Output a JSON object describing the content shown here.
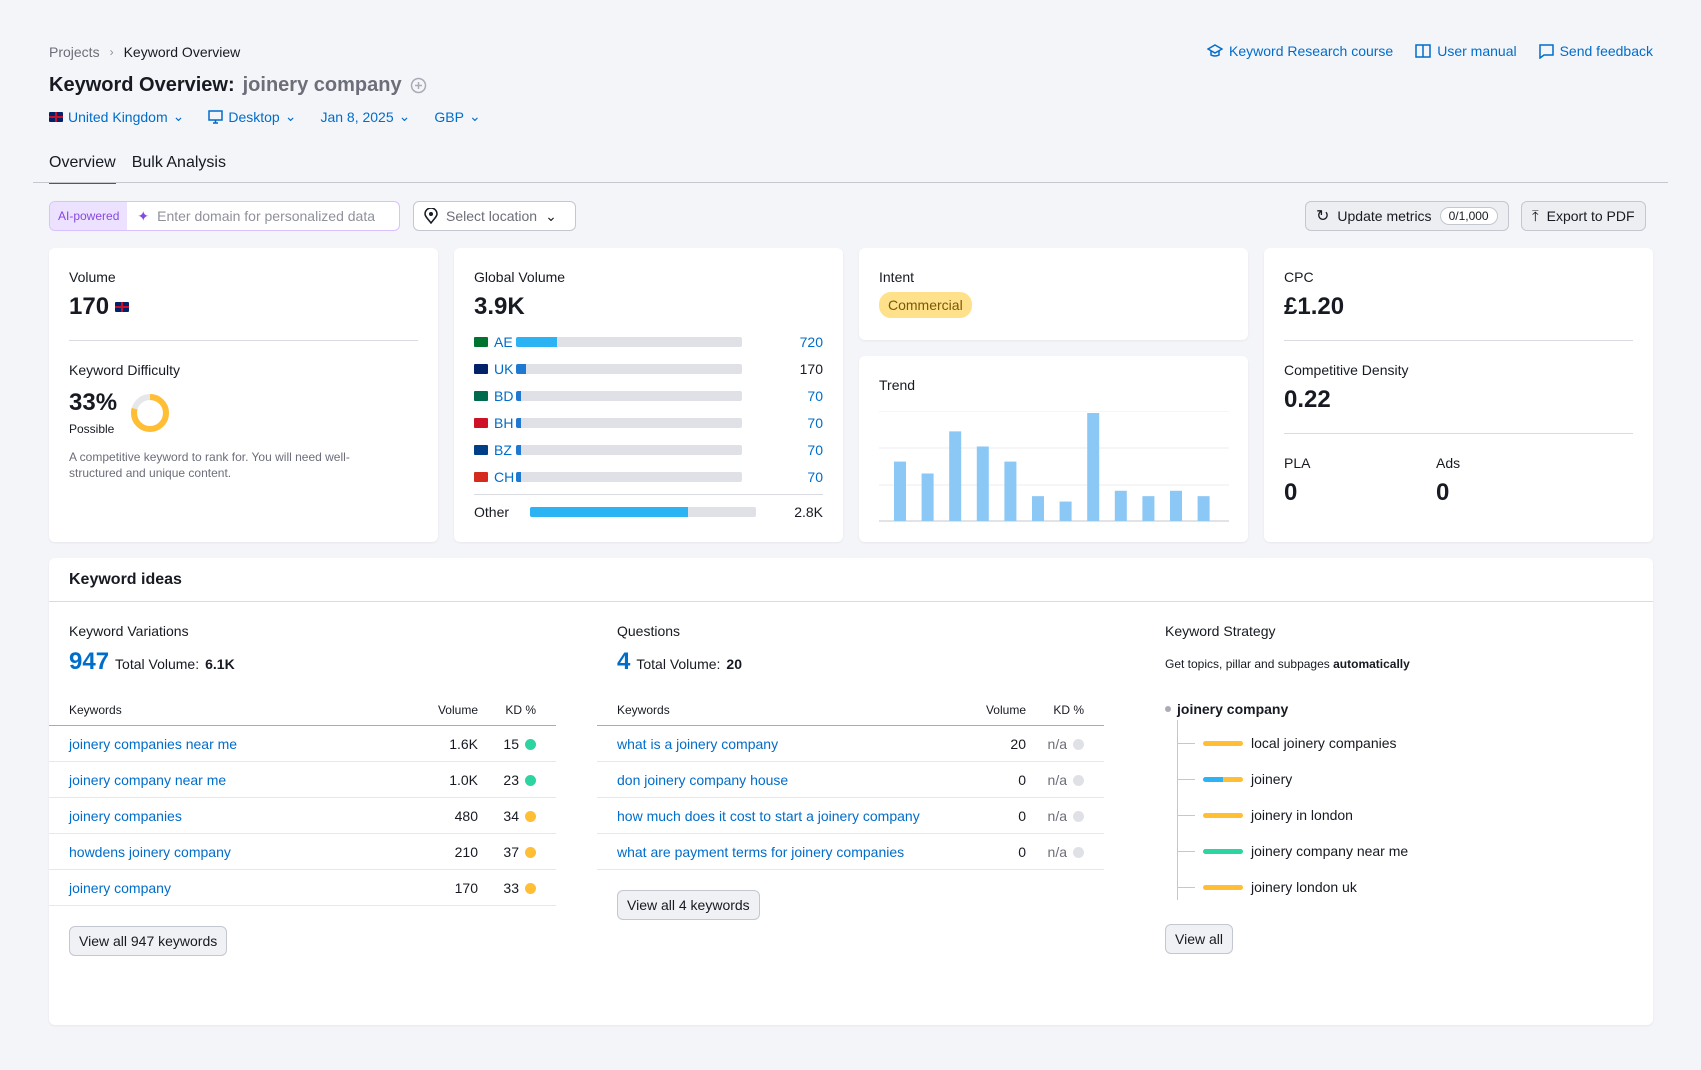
{
  "breadcrumb": {
    "root": "Projects",
    "current": "Keyword Overview"
  },
  "top_links": [
    {
      "label": "Keyword Research course",
      "icon": "graduation-cap-icon"
    },
    {
      "label": "User manual",
      "icon": "book-icon"
    },
    {
      "label": "Send feedback",
      "icon": "chat-icon"
    }
  ],
  "title": {
    "prefix": "Keyword Overview:",
    "keyword": "joinery company"
  },
  "filters": {
    "country": "United Kingdom",
    "device": "Desktop",
    "date": "Jan 8, 2025",
    "currency": "GBP"
  },
  "tabs": [
    "Overview",
    "Bulk Analysis"
  ],
  "ai": {
    "badge": "AI-powered",
    "placeholder": "Enter domain for personalized data"
  },
  "location_select": "Select location",
  "update_metrics": {
    "label": "Update metrics",
    "counter": "0/1,000"
  },
  "export": "Export to PDF",
  "volume": {
    "label": "Volume",
    "value": "170"
  },
  "kd": {
    "label": "Keyword Difficulty",
    "value": "33%",
    "level": "Possible",
    "percent": 33,
    "desc": "A competitive keyword to rank for. You will need well-structured and unique content."
  },
  "global_volume": {
    "label": "Global Volume",
    "value": "3.9K",
    "countries": [
      {
        "code": "AE",
        "value": "720",
        "fraction": 0.18
      },
      {
        "code": "UK",
        "value": "170",
        "fraction": 0.045
      },
      {
        "code": "BD",
        "value": "70",
        "fraction": 0.02
      },
      {
        "code": "BH",
        "value": "70",
        "fraction": 0.02
      },
      {
        "code": "BZ",
        "value": "70",
        "fraction": 0.02
      },
      {
        "code": "CH",
        "value": "70",
        "fraction": 0.02
      }
    ],
    "other": {
      "label": "Other",
      "value": "2.8K",
      "fraction": 0.7
    }
  },
  "intent": {
    "label": "Intent",
    "value": "Commercial"
  },
  "trend": {
    "label": "Trend",
    "values": [
      0.55,
      0.44,
      0.83,
      0.69,
      0.55,
      0.23,
      0.18,
      1.0,
      0.28,
      0.23,
      0.28,
      0.23
    ]
  },
  "cpc": {
    "label": "CPC",
    "value": "£1.20"
  },
  "competitive_density": {
    "label": "Competitive Density",
    "value": "0.22"
  },
  "pla": {
    "label": "PLA",
    "value": "0"
  },
  "ads": {
    "label": "Ads",
    "value": "0"
  },
  "keyword_ideas": {
    "title": "Keyword ideas",
    "variations": {
      "label": "Keyword Variations",
      "count": "947",
      "total_label": "Total Volume:",
      "total": "6.1K",
      "headers": [
        "Keywords",
        "Volume",
        "KD %"
      ],
      "rows": [
        {
          "kw": "joinery companies near me",
          "vol": "1.6K",
          "kd": "15",
          "color": "#2bd4a1"
        },
        {
          "kw": "joinery company near me",
          "vol": "1.0K",
          "kd": "23",
          "color": "#2bd4a1"
        },
        {
          "kw": "joinery companies",
          "vol": "480",
          "kd": "34",
          "color": "#ffbe33"
        },
        {
          "kw": "howdens joinery company",
          "vol": "210",
          "kd": "37",
          "color": "#ffbe33"
        },
        {
          "kw": "joinery company",
          "vol": "170",
          "kd": "33",
          "color": "#ffbe33"
        }
      ],
      "view_all": "View all 947 keywords"
    },
    "questions": {
      "label": "Questions",
      "count": "4",
      "total_label": "Total Volume:",
      "total": "20",
      "headers": [
        "Keywords",
        "Volume",
        "KD %"
      ],
      "rows": [
        {
          "kw": "what is a joinery company",
          "vol": "20",
          "kd": "n/a",
          "color": "#e0e1e6"
        },
        {
          "kw": "don joinery company house",
          "vol": "0",
          "kd": "n/a",
          "color": "#e0e1e6"
        },
        {
          "kw": "how much does it cost to start a joinery company",
          "vol": "0",
          "kd": "n/a",
          "color": "#e0e1e6"
        },
        {
          "kw": "what are payment terms for joinery companies",
          "vol": "0",
          "kd": "n/a",
          "color": "#e0e1e6"
        }
      ],
      "view_all": "View all 4 keywords"
    },
    "strategy": {
      "label": "Keyword Strategy",
      "desc_prefix": "Get topics, pillar and subpages",
      "desc_bold": "automatically",
      "root": "joinery company",
      "items": [
        {
          "label": "local joinery companies",
          "color": "#ffbe33"
        },
        {
          "label": "joinery",
          "color": "#2bb3f4"
        },
        {
          "label": "joinery in london",
          "color": "#ffbe33"
        },
        {
          "label": "joinery company near me",
          "color": "#2bd4a1"
        },
        {
          "label": "joinery london uk",
          "color": "#ffbe33"
        }
      ],
      "view_all": "View all"
    }
  }
}
